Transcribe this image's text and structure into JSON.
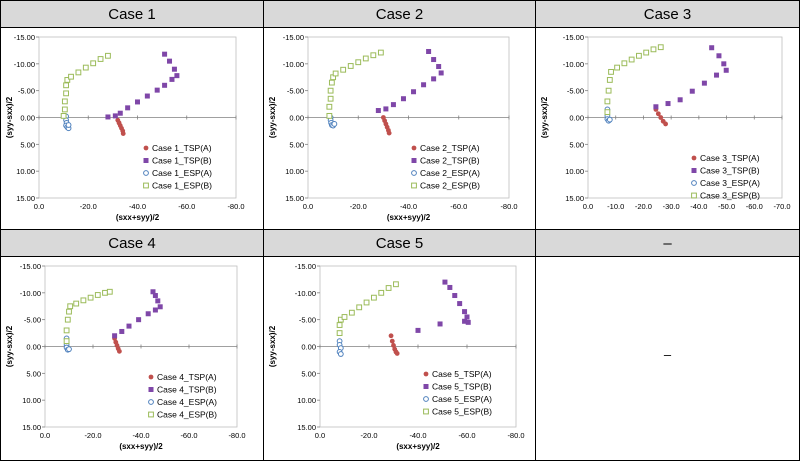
{
  "headers": [
    "Case 1",
    "Case 2",
    "Case 3",
    "Case 4",
    "Case 5",
    "–"
  ],
  "empty_cell_text": "–",
  "colors": {
    "tspA": "#c0504d",
    "tspB": "#7f47a8",
    "espA": "#4f81bd",
    "espB": "#9bbb59"
  },
  "chart_data": [
    {
      "type": "scatter",
      "title": "Case 1",
      "xlabel": "(sxx+syy)/2",
      "ylabel": "(syy-sxx)/2",
      "xlim": [
        0,
        -80
      ],
      "ylim": [
        -15,
        15
      ],
      "xticks": [
        "0.0",
        "-20.0",
        "-40.0",
        "-60.0",
        "-80.0"
      ],
      "yticks": [
        "-15.00",
        "-10.00",
        "-5.00",
        "0.00",
        "5.00",
        "10.00",
        "15.00"
      ],
      "series": [
        {
          "name": "Case 1_TSP(A)",
          "marker": "dot",
          "points": [
            [
              -32,
              0.5
            ],
            [
              -32.5,
              1.0
            ],
            [
              -33,
              1.5
            ],
            [
              -33.5,
              2.0
            ],
            [
              -34,
              2.5
            ],
            [
              -34.2,
              3.0
            ]
          ]
        },
        {
          "name": "Case 1_TSP(B)",
          "marker": "square",
          "points": [
            [
              -28,
              -0.1
            ],
            [
              -31,
              -0.3
            ],
            [
              -33,
              -0.8
            ],
            [
              -36,
              -1.8
            ],
            [
              -40,
              -2.9
            ],
            [
              -44,
              -4.0
            ],
            [
              -48,
              -5.1
            ],
            [
              -51,
              -6.0
            ],
            [
              -54,
              -7.1
            ],
            [
              -56,
              -7.8
            ],
            [
              -55,
              -9.0
            ],
            [
              -53,
              -10.5
            ],
            [
              -51,
              -11.8
            ]
          ]
        },
        {
          "name": "Case 1_ESP(A)",
          "marker": "circle",
          "points": [
            [
              -11,
              -0.2
            ],
            [
              -11,
              0.5
            ],
            [
              -11.2,
              1.0
            ],
            [
              -11,
              1.5
            ],
            [
              -11.5,
              1.8
            ],
            [
              -12,
              2.0
            ],
            [
              -12,
              1.4
            ]
          ]
        },
        {
          "name": "Case 1_ESP(B)",
          "marker": "open-square",
          "points": [
            [
              -10,
              -0.3
            ],
            [
              -10.5,
              -1.5
            ],
            [
              -10.5,
              -3.0
            ],
            [
              -11,
              -4.5
            ],
            [
              -11,
              -6.0
            ],
            [
              -11.5,
              -7.0
            ],
            [
              -13,
              -7.6
            ],
            [
              -16,
              -8.4
            ],
            [
              -19,
              -9.3
            ],
            [
              -22,
              -10.1
            ],
            [
              -25,
              -10.9
            ],
            [
              -28,
              -11.5
            ]
          ]
        }
      ]
    },
    {
      "type": "scatter",
      "title": "Case 2",
      "xlabel": "(sxx+syy)/2",
      "ylabel": "(syy-sxx)/2",
      "xlim": [
        0,
        -80
      ],
      "ylim": [
        -15,
        15
      ],
      "xticks": [
        "0.0",
        "-20.0",
        "-40.0",
        "-60.0",
        "-80.0"
      ],
      "yticks": [
        "-15.00",
        "-10.00",
        "-5.00",
        "0.00",
        "5.00",
        "10.00",
        "15.00"
      ],
      "series": [
        {
          "name": "Case 2_TSP(A)",
          "marker": "dot",
          "points": [
            [
              -30,
              0.0
            ],
            [
              -30.5,
              0.6
            ],
            [
              -31,
              1.2
            ],
            [
              -31.5,
              1.8
            ],
            [
              -32,
              2.4
            ],
            [
              -32.3,
              2.9
            ]
          ]
        },
        {
          "name": "Case 2_TSP(B)",
          "marker": "square",
          "points": [
            [
              -28,
              -1.3
            ],
            [
              -31,
              -1.6
            ],
            [
              -34,
              -2.4
            ],
            [
              -38,
              -3.5
            ],
            [
              -42,
              -4.8
            ],
            [
              -46,
              -6.1
            ],
            [
              -50,
              -7.2
            ],
            [
              -53,
              -8.3
            ],
            [
              -52,
              -9.5
            ],
            [
              -50,
              -10.8
            ],
            [
              -48,
              -12.3
            ]
          ]
        },
        {
          "name": "Case 2_ESP(A)",
          "marker": "circle",
          "points": [
            [
              -9,
              0.0
            ],
            [
              -9,
              0.5
            ],
            [
              -9.2,
              1.0
            ],
            [
              -9.5,
              1.4
            ],
            [
              -10,
              1.5
            ],
            [
              -10.5,
              1.2
            ]
          ]
        },
        {
          "name": "Case 2_ESP(B)",
          "marker": "open-square",
          "points": [
            [
              -8.5,
              -0.3
            ],
            [
              -8.5,
              -2.0
            ],
            [
              -9,
              -3.5
            ],
            [
              -9,
              -5.0
            ],
            [
              -9.5,
              -6.5
            ],
            [
              -10,
              -7.5
            ],
            [
              -11,
              -8.2
            ],
            [
              -14,
              -8.9
            ],
            [
              -17,
              -9.6
            ],
            [
              -20,
              -10.3
            ],
            [
              -23,
              -11.0
            ],
            [
              -26,
              -11.6
            ],
            [
              -29,
              -12.1
            ]
          ]
        }
      ]
    },
    {
      "type": "scatter",
      "title": "Case 3",
      "xlabel": "",
      "ylabel": "(syy-sxx)/2",
      "xlim": [
        0,
        -80
      ],
      "ylim": [
        -15,
        15
      ],
      "xticks": [
        "0.0",
        "-10.0",
        "-20.0",
        "-30.0",
        "-40.0",
        "-50.0",
        "-60.0",
        "-70.0"
      ],
      "yticks": [
        "-15.00",
        "-10.00",
        "-5.00",
        "0.00",
        "5.00",
        "10.00",
        "15.00"
      ],
      "series": [
        {
          "name": "Case 3_TSP(A)",
          "marker": "dot",
          "points": [
            [
              -28,
              -1.5
            ],
            [
              -29,
              -0.7
            ],
            [
              -30,
              0.0
            ],
            [
              -31,
              0.7
            ],
            [
              -32,
              1.2
            ]
          ]
        },
        {
          "name": "Case 3_TSP(B)",
          "marker": "square",
          "points": [
            [
              -28,
              -2.0
            ],
            [
              -33,
              -2.6
            ],
            [
              -38,
              -3.3
            ],
            [
              -43,
              -4.9
            ],
            [
              -48,
              -6.4
            ],
            [
              -53,
              -7.9
            ],
            [
              -57,
              -8.8
            ],
            [
              -56,
              -10.0
            ],
            [
              -54,
              -11.5
            ],
            [
              -51,
              -13.0
            ]
          ]
        },
        {
          "name": "Case 3_ESP(A)",
          "marker": "circle",
          "points": [
            [
              -8,
              -0.3
            ],
            [
              -8,
              0.3
            ],
            [
              -8.5,
              0.6
            ],
            [
              -9,
              0.4
            ],
            [
              -8,
              -1.5
            ]
          ]
        },
        {
          "name": "Case 3_ESP(B)",
          "marker": "open-square",
          "points": [
            [
              -8,
              -1.0
            ],
            [
              -8,
              -3.0
            ],
            [
              -8.5,
              -5.0
            ],
            [
              -9,
              -7.0
            ],
            [
              -9.5,
              -8.5
            ],
            [
              -12,
              -9.3
            ],
            [
              -15,
              -10.1
            ],
            [
              -18,
              -10.8
            ],
            [
              -21,
              -11.5
            ],
            [
              -24,
              -12.1
            ],
            [
              -27,
              -12.7
            ],
            [
              -30,
              -13.1
            ]
          ]
        }
      ]
    },
    {
      "type": "scatter",
      "title": "Case 4",
      "xlabel": "(sxx+syy)/2",
      "ylabel": "(syy-sxx)/2",
      "xlim": [
        0,
        -80
      ],
      "ylim": [
        -15,
        15
      ],
      "xticks": [
        "0.0",
        "-20.0",
        "-40.0",
        "-60.0",
        "-80.0"
      ],
      "yticks": [
        "-15.00",
        "-10.00",
        "-5.00",
        "0.00",
        "5.00",
        "10.00",
        "15.00"
      ],
      "series": [
        {
          "name": "Case 4_TSP(A)",
          "marker": "dot",
          "points": [
            [
              -29,
              -1.5
            ],
            [
              -29.5,
              -0.8
            ],
            [
              -30,
              -0.2
            ],
            [
              -30.5,
              0.4
            ],
            [
              -31,
              0.9
            ]
          ]
        },
        {
          "name": "Case 4_TSP(B)",
          "marker": "square",
          "points": [
            [
              -29,
              -2.0
            ],
            [
              -32,
              -2.8
            ],
            [
              -35,
              -3.8
            ],
            [
              -39,
              -5.0
            ],
            [
              -43,
              -6.1
            ],
            [
              -46,
              -6.8
            ],
            [
              -48,
              -7.4
            ],
            [
              -47,
              -8.5
            ],
            [
              -46,
              -9.5
            ],
            [
              -45,
              -10.2
            ]
          ]
        },
        {
          "name": "Case 4_ESP(A)",
          "marker": "circle",
          "points": [
            [
              -9,
              -0.3
            ],
            [
              -9,
              0.2
            ],
            [
              -9.5,
              0.6
            ],
            [
              -10,
              0.5
            ],
            [
              -9,
              -1.5
            ]
          ]
        },
        {
          "name": "Case 4_ESP(B)",
          "marker": "open-square",
          "points": [
            [
              -9,
              -1.0
            ],
            [
              -9,
              -3.0
            ],
            [
              -9.5,
              -5.0
            ],
            [
              -10,
              -6.5
            ],
            [
              -10.5,
              -7.5
            ],
            [
              -13,
              -8.0
            ],
            [
              -16,
              -8.6
            ],
            [
              -19,
              -9.1
            ],
            [
              -22,
              -9.6
            ],
            [
              -25,
              -10.0
            ],
            [
              -27,
              -10.2
            ]
          ]
        }
      ]
    },
    {
      "type": "scatter",
      "title": "Case 5",
      "xlabel": "(sxx+syy)/2",
      "ylabel": "(syy-sxx)/2",
      "xlim": [
        0,
        -80
      ],
      "ylim": [
        -15,
        15
      ],
      "xticks": [
        "0.0",
        "-20.0",
        "-40.0",
        "-60.0",
        "-80.0"
      ],
      "yticks": [
        "-15.00",
        "-10.00",
        "-5.00",
        "0.00",
        "5.00",
        "10.00",
        "15.00"
      ],
      "series": [
        {
          "name": "Case 5_TSP(A)",
          "marker": "dot",
          "points": [
            [
              -29,
              -2.0
            ],
            [
              -29.5,
              -1.0
            ],
            [
              -30,
              -0.2
            ],
            [
              -30.5,
              0.5
            ],
            [
              -31,
              1.0
            ],
            [
              -31.5,
              1.3
            ]
          ]
        },
        {
          "name": "Case 5_TSP(B)",
          "marker": "square",
          "points": [
            [
              -51,
              -12.0
            ],
            [
              -53,
              -11.0
            ],
            [
              -55,
              -9.5
            ],
            [
              -57,
              -8.0
            ],
            [
              -59,
              -6.5
            ],
            [
              -60,
              -5.5
            ],
            [
              -59,
              -4.7
            ],
            [
              -60.5,
              -4.5
            ],
            [
              -49,
              -4.2
            ],
            [
              -40,
              -3.0
            ]
          ]
        },
        {
          "name": "Case 5_ESP(A)",
          "marker": "circle",
          "points": [
            [
              -8,
              -1.0
            ],
            [
              -8,
              -0.3
            ],
            [
              -8.5,
              0.3
            ],
            [
              -8,
              1.0
            ],
            [
              -8.5,
              1.4
            ]
          ]
        },
        {
          "name": "Case 5_ESP(B)",
          "marker": "open-square",
          "points": [
            [
              -8,
              -2.5
            ],
            [
              -8,
              -4.0
            ],
            [
              -8.5,
              -5.0
            ],
            [
              -10,
              -5.5
            ],
            [
              -13,
              -6.3
            ],
            [
              -16,
              -7.3
            ],
            [
              -19,
              -8.2
            ],
            [
              -22,
              -9.1
            ],
            [
              -25,
              -10.0
            ],
            [
              -28,
              -10.9
            ],
            [
              -31,
              -11.6
            ]
          ]
        }
      ]
    }
  ]
}
